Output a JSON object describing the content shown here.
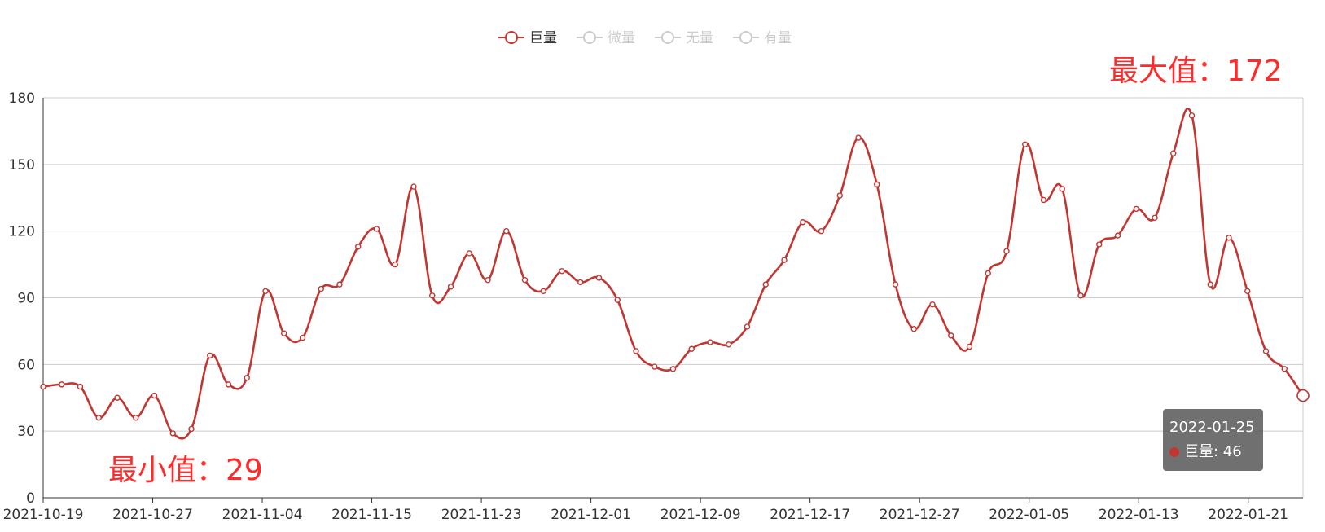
{
  "colors": {
    "series": "#c23531",
    "inactive": "#cccccc",
    "annotation": "#ff2a2a",
    "grid": "#cccccc",
    "axis": "#333333"
  },
  "legend": [
    {
      "name": "巨量",
      "active": true
    },
    {
      "name": "微量",
      "active": false
    },
    {
      "name": "无量",
      "active": false
    },
    {
      "name": "有量",
      "active": false
    }
  ],
  "annotations": {
    "max": "最大值：172",
    "min": "最小值：29"
  },
  "tooltip": {
    "date": "2022-01-25",
    "label": "巨量: 46"
  },
  "chart_data": {
    "type": "line",
    "smooth": true,
    "ylim": [
      0,
      180
    ],
    "yticks": [
      0,
      30,
      60,
      90,
      120,
      150,
      180
    ],
    "grid": true,
    "legend_position": "top-center",
    "x_tick_labels": [
      "2021-10-19",
      "2021-10-27",
      "2021-11-04",
      "2021-11-15",
      "2021-11-23",
      "2021-12-01",
      "2021-12-09",
      "2021-12-17",
      "2021-12-27",
      "2022-01-05",
      "2022-01-13",
      "2022-01-21"
    ],
    "series": [
      {
        "name": "巨量",
        "values": [
          50,
          51,
          50,
          36,
          45,
          36,
          46,
          29,
          31,
          64,
          51,
          54,
          93,
          74,
          72,
          94,
          96,
          113,
          121,
          105,
          140,
          91,
          95,
          110,
          98,
          120,
          98,
          93,
          102,
          97,
          99,
          89,
          66,
          59,
          58,
          67,
          70,
          69,
          77,
          96,
          107,
          124,
          120,
          136,
          162,
          141,
          96,
          76,
          87,
          73,
          68,
          101,
          111,
          159,
          134,
          139,
          91,
          114,
          118,
          130,
          126,
          155,
          172,
          96,
          117,
          93,
          66,
          58,
          46
        ]
      }
    ]
  }
}
